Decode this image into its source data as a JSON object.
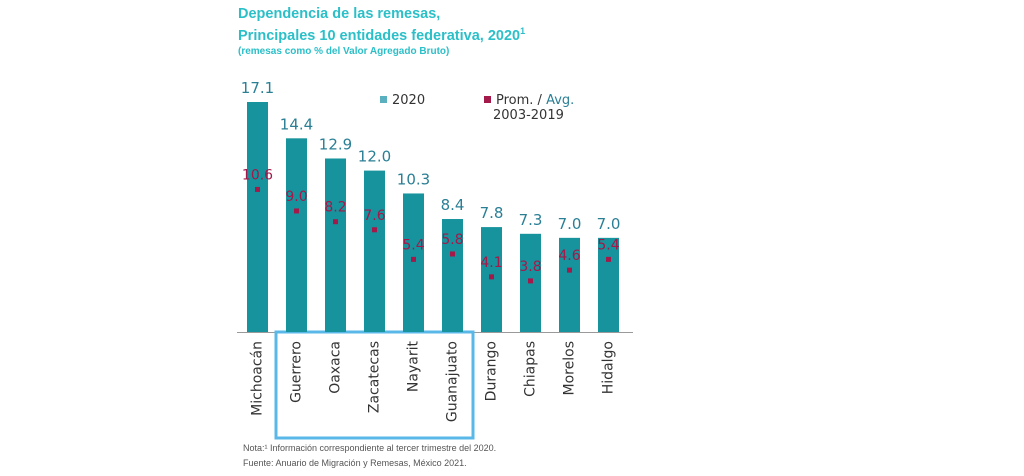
{
  "title": {
    "line1": "Dependencia de las remesas,",
    "line2": "Principales 10 entidades federativa, 2020",
    "superscript": "1",
    "subtitle": "(remesas como % del Valor Agregado Bruto)"
  },
  "legend": {
    "series1": "2020",
    "series2_line1_a": "Prom. / ",
    "series2_line1_b": "Avg.",
    "series2_line2": "2003-2019"
  },
  "notes": {
    "note": "Nota:¹ Información correspondiente al tercer trimestre del 2020.",
    "source": "Fuente: Anuario de Migración y Remesas, México 2021."
  },
  "colors": {
    "bar": "#16939c",
    "bar_label": "#2a7f95",
    "avg_marker": "#a3194a",
    "avg_label": "#a3194a",
    "highlight_box": "#5ab8e8",
    "title": "#2bbfc8"
  },
  "chart_data": {
    "type": "bar",
    "categories": [
      "Michoacán",
      "Guerrero",
      "Oaxaca",
      "Zacatecas",
      "Nayarit",
      "Guanajuato",
      "Durango",
      "Chiapas",
      "Morelos",
      "Hidalgo"
    ],
    "series": [
      {
        "name": "2020",
        "values": [
          17.1,
          14.4,
          12.9,
          12.0,
          10.3,
          8.4,
          7.8,
          7.3,
          7.0,
          7.0
        ],
        "labels": [
          "17.1",
          "14.4",
          "12.9",
          "12.0",
          "10.3",
          "8.4",
          "7.8",
          "7.3",
          "7.0",
          "7.0"
        ]
      },
      {
        "name": "Prom. / Avg. 2003-2019",
        "values": [
          10.6,
          9.0,
          8.2,
          7.6,
          5.4,
          5.8,
          4.1,
          3.8,
          4.6,
          5.4
        ],
        "labels": [
          "10.6",
          "9.0",
          "8.2",
          "7.6",
          "5.4",
          "5.8",
          "4.1",
          "3.8",
          "4.6",
          "5.4"
        ],
        "style": "marker"
      }
    ],
    "highlighted_categories": [
      "Guerrero",
      "Oaxaca",
      "Zacatecas",
      "Nayarit",
      "Guanajuato"
    ],
    "ylim": [
      0,
      17.1
    ],
    "grid": false,
    "legend_position": "top-right"
  }
}
